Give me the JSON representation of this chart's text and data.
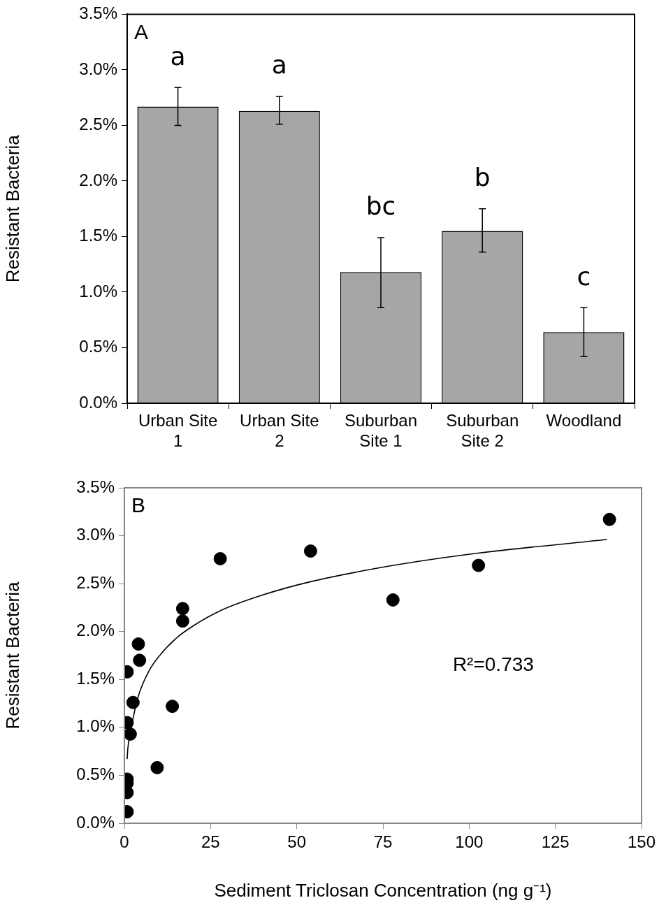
{
  "chart_data": [
    {
      "type": "bar",
      "title": "A",
      "ylabel": "Resistant Bacteria",
      "categories": [
        "Urban Site 1",
        "Urban Site 2",
        "Suburban Site 1",
        "Suburban Site 2",
        "Woodland"
      ],
      "series": [
        {
          "color": "#a6a6a6",
          "values": [
            2.67,
            2.63,
            1.18,
            1.55,
            0.64
          ],
          "errors": [
            [
              2.5,
              2.84
            ],
            [
              2.51,
              2.76
            ],
            [
              0.86,
              1.49
            ],
            [
              1.36,
              1.75
            ],
            [
              0.42,
              0.86
            ]
          ]
        }
      ],
      "ylim": [
        0,
        3.5
      ],
      "yticks": [
        {
          "value": 0,
          "label": "0.0%"
        },
        {
          "value": 0.5,
          "label": "0.5%"
        },
        {
          "value": 1,
          "label": "1.0%"
        },
        {
          "value": 1.5,
          "label": "1.5%"
        },
        {
          "value": 2,
          "label": "2.0%"
        },
        {
          "value": 2.5,
          "label": "2.5%"
        },
        {
          "value": 3,
          "label": "3.0%"
        },
        {
          "value": 3.5,
          "label": "3.5%"
        }
      ],
      "annotations": [
        "a",
        "a",
        "bc",
        "b",
        "c"
      ]
    },
    {
      "type": "scatter",
      "title": "B",
      "ylabel": "Resistant Bacteria",
      "xlabel": "Sediment Triclosan Concentration (ng g⁻¹)",
      "series": [
        {
          "type": "scatter",
          "marker": "circle",
          "color": "#000000",
          "x": [
            27.8,
            54.0,
            16.9,
            16.9,
            4.05,
            4.4,
            0.8,
            2.5,
            13.9,
            0.8,
            1.7,
            9.5,
            0.8,
            0.8,
            0.8,
            0.8,
            77.9,
            102.7,
            140.7
          ],
          "values": [
            2.76,
            2.84,
            2.24,
            2.11,
            1.87,
            1.7,
            1.58,
            1.26,
            1.22,
            1.05,
            0.93,
            0.58,
            0.46,
            0.42,
            0.32,
            0.12,
            2.33,
            2.69,
            3.17
          ]
        },
        {
          "type": "line",
          "marker": "none",
          "color": "#000000",
          "x": [
            0.8,
            1,
            2,
            4,
            7,
            10,
            15,
            20,
            28,
            40,
            54,
            78,
            103,
            140
          ],
          "values": [
            0.67,
            0.78,
            1.0,
            1.32,
            1.58,
            1.74,
            1.93,
            2.06,
            2.22,
            2.38,
            2.52,
            2.69,
            2.82,
            2.96
          ]
        }
      ],
      "xlim": [
        0,
        150
      ],
      "xticks": [
        0,
        25,
        50,
        75,
        100,
        125,
        150
      ],
      "ylim": [
        0,
        3.5
      ],
      "yticks": [
        {
          "value": 0,
          "label": "0.0%"
        },
        {
          "value": 0.5,
          "label": "0.5%"
        },
        {
          "value": 1,
          "label": "1.0%"
        },
        {
          "value": 1.5,
          "label": "1.5%"
        },
        {
          "value": 2,
          "label": "2.0%"
        },
        {
          "value": 2.5,
          "label": "2.5%"
        },
        {
          "value": 3,
          "label": "3.0%"
        },
        {
          "value": 3.5,
          "label": "3.5%"
        }
      ],
      "annotations": [
        "R²=0.733"
      ]
    }
  ]
}
